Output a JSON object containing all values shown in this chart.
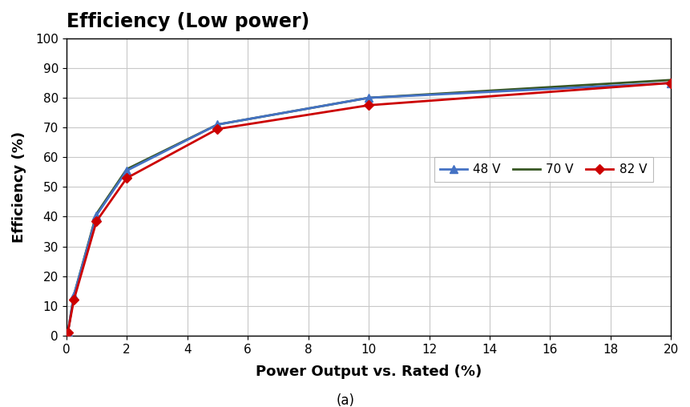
{
  "title": "Efficiency (Low power)",
  "xlabel": "Power Output vs. Rated (%)",
  "ylabel": "Efficiency (%)",
  "caption": "(a)",
  "xlim": [
    0,
    20
  ],
  "ylim": [
    0,
    100
  ],
  "xticks": [
    0,
    2,
    4,
    6,
    8,
    10,
    12,
    14,
    16,
    18,
    20
  ],
  "yticks": [
    0,
    10,
    20,
    30,
    40,
    50,
    60,
    70,
    80,
    90,
    100
  ],
  "series": [
    {
      "label": "48 V",
      "color": "#4472C4",
      "marker": "^",
      "x": [
        0.05,
        0.25,
        1.0,
        2.0,
        5.0,
        10.0,
        20.0
      ],
      "y": [
        1.0,
        13.5,
        40.5,
        55.5,
        71.0,
        80.0,
        85.0
      ]
    },
    {
      "label": "70 V",
      "color": "#375623",
      "marker": "None",
      "x": [
        0.05,
        0.25,
        1.0,
        2.0,
        5.0,
        10.0,
        20.0
      ],
      "y": [
        1.0,
        13.5,
        41.0,
        56.0,
        71.0,
        80.0,
        86.0
      ]
    },
    {
      "label": "82 V",
      "color": "#CC0000",
      "marker": "D",
      "x": [
        0.05,
        0.25,
        1.0,
        2.0,
        5.0,
        10.0,
        20.0
      ],
      "y": [
        1.0,
        12.0,
        38.5,
        53.0,
        69.5,
        77.5,
        85.0
      ]
    }
  ],
  "background_color": "#ffffff",
  "grid_color": "#c8c8c8",
  "title_fontsize": 17,
  "axis_label_fontsize": 13,
  "tick_fontsize": 11,
  "legend_fontsize": 11,
  "caption_fontsize": 12
}
